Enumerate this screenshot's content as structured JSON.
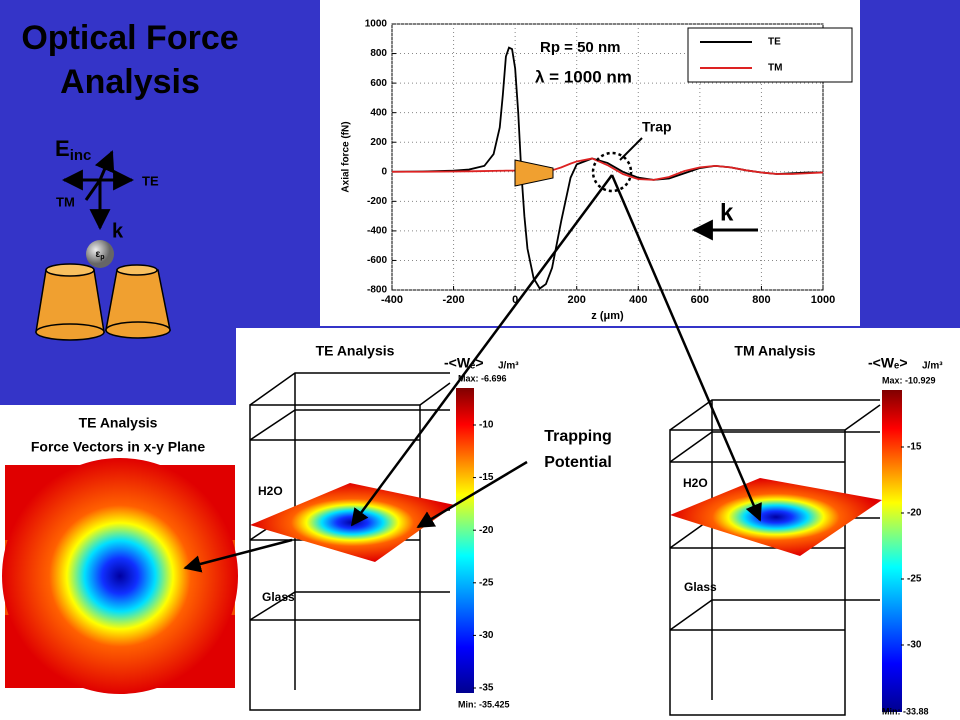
{
  "title_lines": [
    "Optical Force",
    "Analysis"
  ],
  "diagram": {
    "field": "E",
    "field_sub": "inc",
    "te": "TE",
    "tm": "TM",
    "k": "k",
    "particle": "ε",
    "particle_sub": "p"
  },
  "chart_data": {
    "type": "line",
    "xlabel": "z (μm)",
    "ylabel": "Axial force (fN)",
    "x": [
      -400,
      -300,
      -200,
      -150,
      -100,
      -70,
      -50,
      -40,
      -30,
      -20,
      -10,
      0,
      10,
      20,
      30,
      40,
      60,
      80,
      100,
      120,
      150,
      180,
      200,
      250,
      300,
      350,
      400,
      450,
      500,
      550,
      600,
      650,
      700,
      750,
      800,
      850,
      900,
      950,
      1000
    ],
    "series": [
      {
        "name": "TE",
        "color": "#000000",
        "values": [
          0,
          2,
          8,
          15,
          40,
          120,
          300,
          520,
          780,
          840,
          830,
          700,
          400,
          0,
          -300,
          -520,
          -720,
          -790,
          -760,
          -650,
          -330,
          -40,
          50,
          90,
          60,
          0,
          -40,
          -55,
          -45,
          -10,
          25,
          40,
          30,
          10,
          -5,
          -15,
          -10,
          -5,
          -5
        ]
      },
      {
        "name": "TM",
        "color": "#dd2222",
        "values": [
          0,
          0,
          2,
          3,
          5,
          6,
          7,
          7,
          8,
          8,
          8,
          8,
          8,
          8,
          7,
          6,
          4,
          3,
          5,
          10,
          30,
          55,
          70,
          90,
          45,
          -15,
          -50,
          -55,
          -35,
          5,
          30,
          40,
          30,
          10,
          -5,
          -15,
          -15,
          -10,
          -5
        ]
      }
    ],
    "xlim": [
      -400,
      1000
    ],
    "xticks": [
      -400,
      -200,
      0,
      200,
      400,
      600,
      800,
      1000
    ],
    "ylim": [
      -800,
      1000
    ],
    "yticks": [
      -800,
      -600,
      -400,
      -200,
      0,
      200,
      400,
      600,
      800,
      1000
    ],
    "grid": true,
    "legend": "upper right",
    "annotations": [
      "Rp = 50 nm",
      "λ = 1000 nm",
      "Trap",
      "k"
    ]
  },
  "left_panel": {
    "title": "TE Analysis",
    "subtitle": "Force Vectors in x-y Plane"
  },
  "trapping_label": [
    "Trapping",
    "Potential"
  ],
  "te_panel": {
    "title": "TE Analysis",
    "quantity": "-<Wₑ>",
    "unit": "J/m³",
    "max": "Max: -6.696",
    "min": "Min: -35.425",
    "ticks": [
      -10,
      -15,
      -20,
      -25,
      -30,
      -35
    ],
    "water": "H2O",
    "glass": "Glass"
  },
  "tm_panel": {
    "title": "TM Analysis",
    "quantity": "-<Wₑ>",
    "unit": "J/m³",
    "max": "Max: -10.929",
    "min": "Min: -33.88",
    "ticks": [
      -15,
      -20,
      -25,
      -30
    ],
    "water": "H2O",
    "glass": "Glass"
  }
}
